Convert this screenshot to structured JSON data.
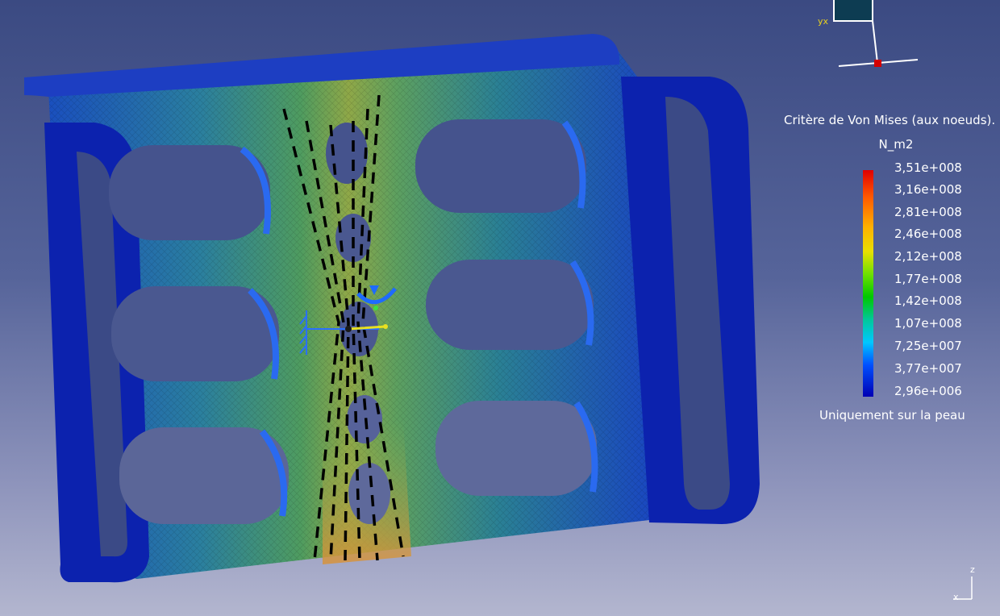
{
  "legend": {
    "title": "Critère de Von Mises (aux noeuds).",
    "unit": "N_m2",
    "values": [
      "3,51e+008",
      "3,16e+008",
      "2,81e+008",
      "2,46e+008",
      "2,12e+008",
      "1,77e+008",
      "1,42e+008",
      "1,07e+008",
      "7,25e+007",
      "3,77e+007",
      "2,96e+006"
    ],
    "note": "Uniquement sur la peau"
  },
  "axes": {
    "compass_label": "yx",
    "axis_z": "z",
    "axis_x": "x"
  },
  "colors": {
    "background_top": "#3b4a82",
    "background_bottom": "#b3b6cf",
    "part_low": "#0a1fb8",
    "part_mid": "#2e8a7e",
    "part_high": "#d2a23a",
    "legend_max": "#e00000",
    "legend_min": "#0000b4"
  }
}
